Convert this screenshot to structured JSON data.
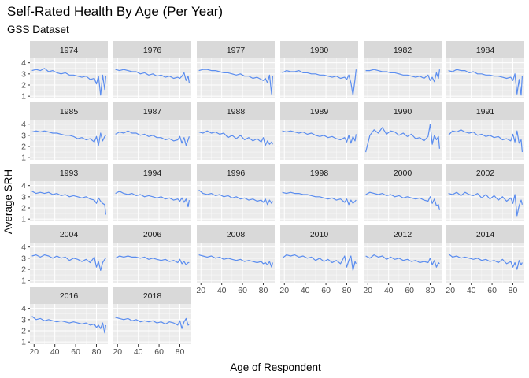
{
  "colors": {
    "panel_bg": "#EBEBEB",
    "strip_bg": "#D9D9D9",
    "grid_major": "#FFFFFF",
    "line": "#5B8DEF",
    "tick": "#333333"
  },
  "chart_data": {
    "type": "line",
    "title": "Self-Rated Health By Age (Per Year)",
    "subtitle": "GSS Dataset",
    "xlabel": "Age of Respondent",
    "ylabel": "Average SRH",
    "xlim": [
      16,
      91
    ],
    "ylim": [
      0.8,
      4.4
    ],
    "x_ticks": [
      20,
      40,
      60,
      80
    ],
    "y_ticks": [
      1,
      2,
      3,
      4
    ],
    "x": [
      18,
      22,
      26,
      30,
      34,
      38,
      42,
      46,
      50,
      54,
      58,
      62,
      66,
      70,
      74,
      78,
      80,
      82,
      84,
      86,
      88,
      89
    ],
    "series": [
      {
        "name": "1974",
        "values": [
          3.3,
          3.4,
          3.3,
          3.5,
          3.2,
          3.3,
          3.1,
          3.0,
          3.1,
          2.9,
          2.9,
          2.8,
          2.7,
          2.8,
          2.5,
          2.6,
          2.1,
          2.8,
          1.1,
          2.9,
          1.6,
          2.8
        ]
      },
      {
        "name": "1976",
        "values": [
          3.4,
          3.3,
          3.4,
          3.3,
          3.2,
          3.2,
          3.0,
          3.1,
          2.9,
          3.0,
          2.8,
          2.9,
          2.7,
          2.8,
          2.6,
          2.7,
          2.6,
          2.8,
          3.1,
          2.4,
          2.8,
          2.2
        ]
      },
      {
        "name": "1977",
        "values": [
          3.3,
          3.4,
          3.4,
          3.3,
          3.3,
          3.2,
          3.1,
          3.1,
          3.0,
          2.9,
          3.0,
          2.8,
          2.8,
          2.6,
          2.7,
          2.5,
          2.4,
          2.6,
          2.2,
          2.9,
          1.2,
          2.8
        ]
      },
      {
        "name": "1980",
        "values": [
          3.1,
          3.3,
          3.2,
          3.2,
          3.3,
          3.1,
          3.1,
          3.0,
          3.0,
          2.9,
          2.9,
          2.8,
          2.7,
          2.8,
          2.6,
          2.7,
          2.5,
          2.9,
          2.2,
          1.1,
          2.5,
          3.4
        ]
      },
      {
        "name": "1982",
        "values": [
          3.3,
          3.3,
          3.4,
          3.3,
          3.2,
          3.2,
          3.1,
          3.1,
          3.0,
          2.9,
          2.9,
          2.8,
          2.7,
          2.8,
          2.6,
          2.9,
          2.4,
          2.7,
          2.3,
          3.1,
          2.6,
          3.4
        ]
      },
      {
        "name": "1984",
        "values": [
          3.3,
          3.2,
          3.4,
          3.3,
          3.3,
          3.1,
          3.2,
          3.0,
          3.0,
          2.9,
          2.9,
          2.8,
          2.8,
          2.7,
          2.6,
          2.7,
          2.4,
          3.0,
          1.2,
          2.5,
          1.1,
          2.8
        ]
      },
      {
        "name": "1985",
        "values": [
          3.3,
          3.4,
          3.3,
          3.4,
          3.3,
          3.2,
          3.2,
          3.1,
          3.0,
          3.0,
          2.9,
          2.7,
          2.8,
          2.6,
          2.7,
          2.4,
          2.9,
          2.1,
          3.2,
          2.5,
          2.9,
          3.0
        ]
      },
      {
        "name": "1987",
        "values": [
          3.1,
          3.3,
          3.2,
          3.4,
          3.2,
          3.2,
          3.0,
          3.1,
          2.9,
          3.0,
          2.8,
          2.8,
          2.6,
          2.7,
          2.5,
          2.6,
          2.9,
          2.3,
          2.8,
          2.1,
          2.6,
          2.9
        ]
      },
      {
        "name": "1988",
        "values": [
          3.3,
          3.2,
          3.4,
          3.2,
          3.3,
          3.1,
          3.2,
          2.8,
          3.0,
          2.7,
          3.0,
          2.6,
          2.8,
          2.5,
          2.7,
          2.4,
          2.8,
          2.1,
          2.5,
          2.2,
          2.4,
          2.2
        ]
      },
      {
        "name": "1989",
        "values": [
          3.4,
          3.3,
          3.4,
          3.3,
          3.2,
          3.3,
          3.1,
          3.2,
          3.0,
          2.9,
          3.0,
          2.8,
          2.9,
          2.7,
          2.6,
          2.8,
          2.4,
          3.0,
          2.3,
          2.9,
          2.5,
          3.1
        ]
      },
      {
        "name": "1990",
        "values": [
          1.5,
          3.0,
          3.5,
          3.2,
          3.7,
          3.1,
          3.4,
          3.3,
          3.0,
          3.2,
          2.9,
          3.1,
          2.7,
          2.8,
          2.5,
          2.9,
          4.0,
          2.2,
          3.0,
          2.6,
          2.9,
          1.8
        ]
      },
      {
        "name": "1991",
        "values": [
          3.0,
          3.4,
          3.3,
          3.5,
          3.3,
          3.2,
          3.3,
          3.0,
          3.1,
          2.9,
          3.0,
          2.8,
          2.9,
          2.6,
          2.7,
          2.5,
          3.1,
          2.4,
          3.4,
          2.3,
          2.6,
          1.5
        ]
      },
      {
        "name": "1993",
        "values": [
          3.5,
          3.3,
          3.4,
          3.3,
          3.4,
          3.2,
          3.3,
          3.1,
          3.2,
          3.0,
          3.1,
          3.0,
          2.9,
          3.0,
          2.8,
          2.7,
          2.4,
          2.9,
          2.6,
          2.4,
          2.3,
          1.4
        ]
      },
      {
        "name": "1994",
        "values": [
          3.3,
          3.5,
          3.3,
          3.2,
          3.3,
          3.1,
          3.2,
          3.0,
          3.1,
          3.0,
          2.9,
          3.0,
          2.8,
          2.9,
          2.7,
          2.8,
          2.6,
          2.9,
          2.5,
          2.8,
          2.1,
          2.7
        ]
      },
      {
        "name": "1996",
        "values": [
          3.6,
          3.3,
          3.2,
          3.3,
          3.1,
          3.2,
          3.0,
          3.1,
          2.9,
          3.0,
          2.8,
          2.9,
          2.7,
          2.8,
          2.6,
          2.7,
          2.5,
          2.8,
          2.3,
          2.7,
          2.4,
          2.6
        ]
      },
      {
        "name": "1998",
        "values": [
          3.4,
          3.3,
          3.4,
          3.3,
          3.3,
          3.2,
          3.2,
          3.1,
          3.0,
          3.0,
          2.9,
          2.8,
          2.9,
          2.7,
          2.8,
          2.5,
          2.8,
          2.3,
          2.7,
          2.4,
          2.6,
          2.7
        ]
      },
      {
        "name": "2000",
        "values": [
          3.2,
          3.4,
          3.3,
          3.2,
          3.3,
          3.1,
          3.2,
          3.0,
          3.1,
          2.9,
          3.0,
          2.9,
          2.8,
          2.9,
          2.7,
          2.6,
          3.0,
          2.4,
          2.8,
          2.2,
          2.3,
          1.8
        ]
      },
      {
        "name": "2002",
        "values": [
          3.3,
          3.2,
          3.4,
          3.1,
          3.4,
          3.2,
          3.1,
          3.3,
          2.9,
          3.2,
          2.8,
          3.1,
          2.7,
          3.0,
          2.6,
          2.9,
          2.4,
          3.2,
          1.3,
          2.2,
          2.7,
          2.3
        ]
      },
      {
        "name": "2004",
        "values": [
          3.2,
          3.3,
          3.1,
          3.3,
          3.2,
          3.0,
          3.2,
          3.0,
          3.1,
          2.8,
          3.0,
          2.9,
          2.7,
          2.9,
          2.6,
          3.1,
          2.2,
          2.7,
          1.9,
          2.6,
          2.9,
          3.0
        ]
      },
      {
        "name": "2006",
        "values": [
          3.0,
          3.2,
          3.1,
          3.2,
          3.1,
          3.1,
          3.0,
          3.1,
          2.9,
          3.0,
          2.9,
          2.8,
          2.9,
          2.7,
          2.8,
          2.6,
          2.9,
          2.5,
          2.7,
          2.4,
          2.6,
          2.6
        ]
      },
      {
        "name": "2008",
        "values": [
          3.3,
          3.2,
          3.1,
          3.2,
          3.0,
          3.1,
          2.9,
          3.0,
          2.9,
          2.8,
          2.9,
          2.7,
          2.8,
          2.7,
          2.6,
          2.7,
          2.5,
          2.6,
          2.4,
          2.7,
          2.2,
          2.6
        ]
      },
      {
        "name": "2010",
        "values": [
          3.0,
          3.3,
          3.2,
          3.3,
          3.1,
          3.2,
          3.0,
          3.1,
          2.8,
          3.0,
          2.7,
          2.9,
          2.6,
          2.8,
          2.5,
          3.2,
          2.2,
          2.8,
          3.2,
          1.9,
          2.7,
          2.5
        ]
      },
      {
        "name": "2012",
        "values": [
          3.2,
          3.0,
          3.3,
          3.1,
          3.2,
          2.9,
          3.1,
          2.9,
          3.0,
          2.8,
          2.9,
          2.7,
          2.8,
          2.6,
          2.7,
          2.6,
          3.0,
          2.4,
          2.8,
          2.2,
          2.6,
          2.5
        ]
      },
      {
        "name": "2014",
        "values": [
          3.4,
          3.1,
          3.2,
          3.0,
          3.1,
          3.0,
          2.9,
          3.0,
          2.8,
          2.9,
          2.7,
          2.8,
          2.6,
          2.9,
          2.5,
          2.7,
          2.2,
          2.6,
          2.0,
          2.8,
          2.4,
          2.6
        ]
      },
      {
        "name": "2016",
        "values": [
          3.3,
          3.0,
          3.1,
          2.9,
          3.0,
          2.9,
          2.8,
          2.9,
          2.8,
          2.7,
          2.8,
          2.7,
          2.6,
          2.7,
          2.5,
          2.6,
          2.3,
          2.5,
          2.2,
          2.7,
          1.8,
          2.5
        ]
      },
      {
        "name": "2018",
        "values": [
          3.2,
          3.1,
          3.0,
          3.1,
          2.9,
          3.0,
          2.8,
          2.9,
          2.8,
          2.9,
          2.7,
          2.8,
          2.6,
          2.8,
          2.7,
          2.5,
          2.9,
          2.2,
          2.8,
          3.1,
          2.5,
          2.6
        ]
      }
    ]
  }
}
